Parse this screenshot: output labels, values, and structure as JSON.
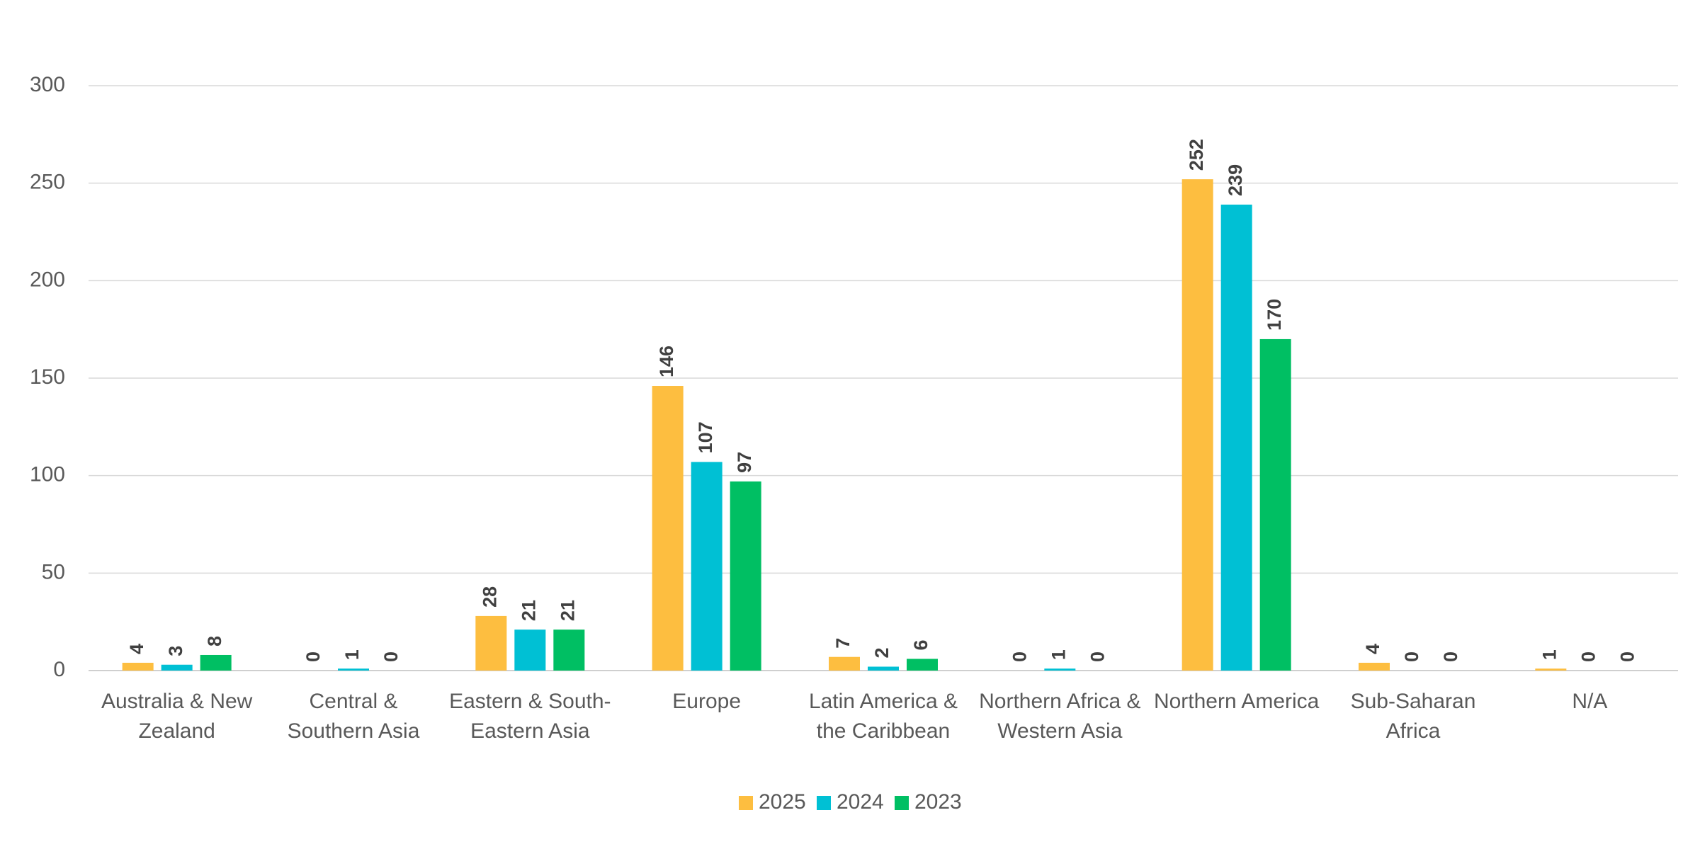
{
  "chart_data": {
    "type": "bar",
    "categories": [
      "Australia & New Zealand",
      "Central & Southern Asia",
      "Eastern & South-Eastern Asia",
      "Europe",
      "Latin America & the Caribbean",
      "Northern Africa & Western Asia",
      "Northern America",
      "Sub-Saharan Africa",
      "N/A"
    ],
    "series": [
      {
        "name": "2025",
        "color": "#fdbe40",
        "values": [
          4,
          0,
          28,
          146,
          7,
          0,
          252,
          4,
          1
        ]
      },
      {
        "name": "2024",
        "color": "#00c0d4",
        "values": [
          3,
          1,
          21,
          107,
          2,
          1,
          239,
          0,
          0
        ]
      },
      {
        "name": "2023",
        "color": "#00bf63",
        "values": [
          8,
          0,
          21,
          97,
          6,
          0,
          170,
          0,
          0
        ]
      }
    ],
    "ylim": [
      0,
      300
    ],
    "yticks": [
      0,
      50,
      100,
      150,
      200,
      250,
      300
    ],
    "grid": true,
    "legend": "bottom"
  }
}
